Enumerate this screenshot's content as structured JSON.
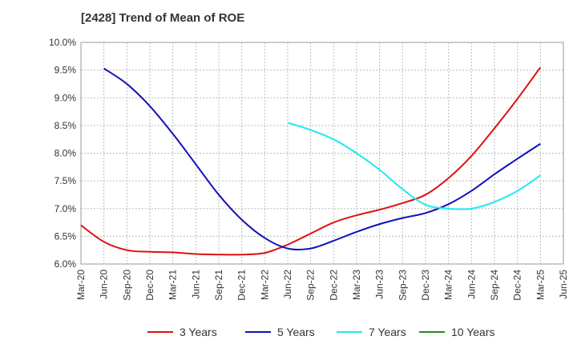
{
  "chart_data": {
    "type": "line",
    "title": "[2428]  Trend of Mean of ROE",
    "xlabel": "",
    "ylabel": "",
    "x_ticks": [
      "Mar-20",
      "Jun-20",
      "Sep-20",
      "Dec-20",
      "Mar-21",
      "Jun-21",
      "Sep-21",
      "Dec-21",
      "Mar-22",
      "Jun-22",
      "Sep-22",
      "Dec-22",
      "Mar-23",
      "Jun-23",
      "Sep-23",
      "Dec-23",
      "Mar-24",
      "Jun-24",
      "Sep-24",
      "Dec-24",
      "Mar-25",
      "Jun-25"
    ],
    "y_ticks": [
      "6.0%",
      "6.5%",
      "7.0%",
      "7.5%",
      "8.0%",
      "8.5%",
      "9.0%",
      "9.5%",
      "10.0%"
    ],
    "ylim": [
      6.0,
      10.0
    ],
    "grid": true,
    "legend_position": "bottom",
    "series": [
      {
        "name": "3 Years",
        "color": "#dd1111",
        "values": [
          6.7,
          6.4,
          6.25,
          6.22,
          6.21,
          6.18,
          6.17,
          6.17,
          6.2,
          6.35,
          6.55,
          6.75,
          6.88,
          6.98,
          7.1,
          7.25,
          7.55,
          7.95,
          8.45,
          8.98,
          9.55,
          null
        ]
      },
      {
        "name": "5 Years",
        "color": "#1111bb",
        "values": [
          null,
          9.53,
          9.25,
          8.85,
          8.35,
          7.8,
          7.25,
          6.8,
          6.47,
          6.28,
          6.28,
          6.42,
          6.58,
          6.72,
          6.83,
          6.92,
          7.08,
          7.32,
          7.62,
          7.9,
          8.17,
          null
        ]
      },
      {
        "name": "7 Years",
        "color": "#22e8f0",
        "values": [
          null,
          null,
          null,
          null,
          null,
          null,
          null,
          null,
          null,
          8.55,
          8.42,
          8.25,
          8.0,
          7.7,
          7.35,
          7.07,
          7.0,
          7.0,
          7.12,
          7.32,
          7.6,
          null
        ]
      },
      {
        "name": "10 Years",
        "color": "#228b22",
        "values": [
          null,
          null,
          null,
          null,
          null,
          null,
          null,
          null,
          null,
          null,
          null,
          null,
          null,
          null,
          null,
          null,
          null,
          null,
          null,
          null,
          null,
          null
        ]
      }
    ]
  }
}
